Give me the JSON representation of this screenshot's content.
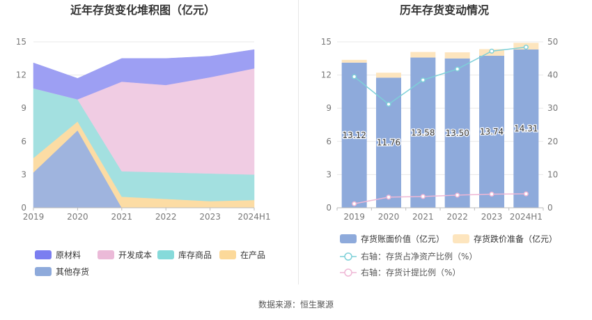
{
  "footer": {
    "source": "数据来源：恒生聚源"
  },
  "chart_data": [
    {
      "type": "area",
      "stacked": true,
      "title": "近年存货变化堆积图（亿元）",
      "categories": [
        "2019",
        "2020",
        "2021",
        "2022",
        "2023",
        "2024H1"
      ],
      "ylim": [
        0,
        15
      ],
      "yticks": [
        "0",
        "3",
        "6",
        "9",
        "12",
        "15"
      ],
      "grid": true,
      "legend_position": "bottom",
      "series": [
        {
          "name": "其他存货",
          "color": "#9fb4de",
          "values": [
            3.2,
            7.0,
            0.0,
            0.0,
            0.0,
            0.0
          ]
        },
        {
          "name": "在产品",
          "color": "#fcdca4",
          "values": [
            1.3,
            0.8,
            1.0,
            0.8,
            0.6,
            0.7
          ]
        },
        {
          "name": "库存商品",
          "color": "#a3e0e0",
          "values": [
            6.3,
            2.0,
            2.3,
            2.4,
            2.5,
            2.3
          ]
        },
        {
          "name": "开发成本",
          "color": "#f0cce3",
          "values": [
            0.0,
            0.0,
            8.1,
            7.9,
            8.7,
            9.6
          ]
        },
        {
          "name": "原材料",
          "color": "#9d9ff3",
          "values": [
            2.3,
            1.9,
            2.1,
            2.4,
            1.9,
            1.7
          ]
        }
      ],
      "legend_order": [
        "原材料",
        "开发成本",
        "库存商品",
        "在产品",
        "其他存货"
      ],
      "legend_colors": {
        "原材料": "#7b7ef0",
        "开发成本": "#ebbad8",
        "库存商品": "#86dada",
        "在产品": "#fcd99a",
        "其他存货": "#8eaadb"
      }
    },
    {
      "type": "bar",
      "stacked": true,
      "title": "历年存货变动情况",
      "categories": [
        "2019",
        "2020",
        "2021",
        "2022",
        "2023",
        "2024H1"
      ],
      "ylim": [
        0,
        15
      ],
      "yticks": [
        "0",
        "3",
        "6",
        "9",
        "12",
        "15"
      ],
      "y2lim": [
        0,
        50
      ],
      "y2ticks": [
        "0",
        "10",
        "20",
        "30",
        "40",
        "50"
      ],
      "grid": true,
      "legend_position": "bottom",
      "series": [
        {
          "name": "存货账面价值（亿元）",
          "kind": "bar",
          "axis": "left",
          "color": "#8eaadb",
          "values": [
            13.12,
            11.76,
            13.58,
            13.5,
            13.74,
            14.31
          ],
          "labels": [
            "13.12",
            "11.76",
            "13.58",
            "13.50",
            "13.74",
            "14.31"
          ]
        },
        {
          "name": "存货跌价准备（亿元）",
          "kind": "bar",
          "axis": "left",
          "color": "#fde5be",
          "values": [
            0.25,
            0.45,
            0.5,
            0.55,
            0.6,
            0.6
          ]
        },
        {
          "name": "右轴：存货占净资产比例（%）",
          "kind": "line",
          "axis": "right",
          "color": "#7dd0d8",
          "values": [
            39.5,
            31.2,
            38.5,
            41.8,
            47.2,
            48.4
          ]
        },
        {
          "name": "右轴：存货计提比例（%）",
          "kind": "line",
          "axis": "right",
          "color": "#efb7d5",
          "values": [
            1.2,
            3.2,
            3.4,
            3.8,
            4.1,
            4.2
          ]
        }
      ]
    }
  ]
}
